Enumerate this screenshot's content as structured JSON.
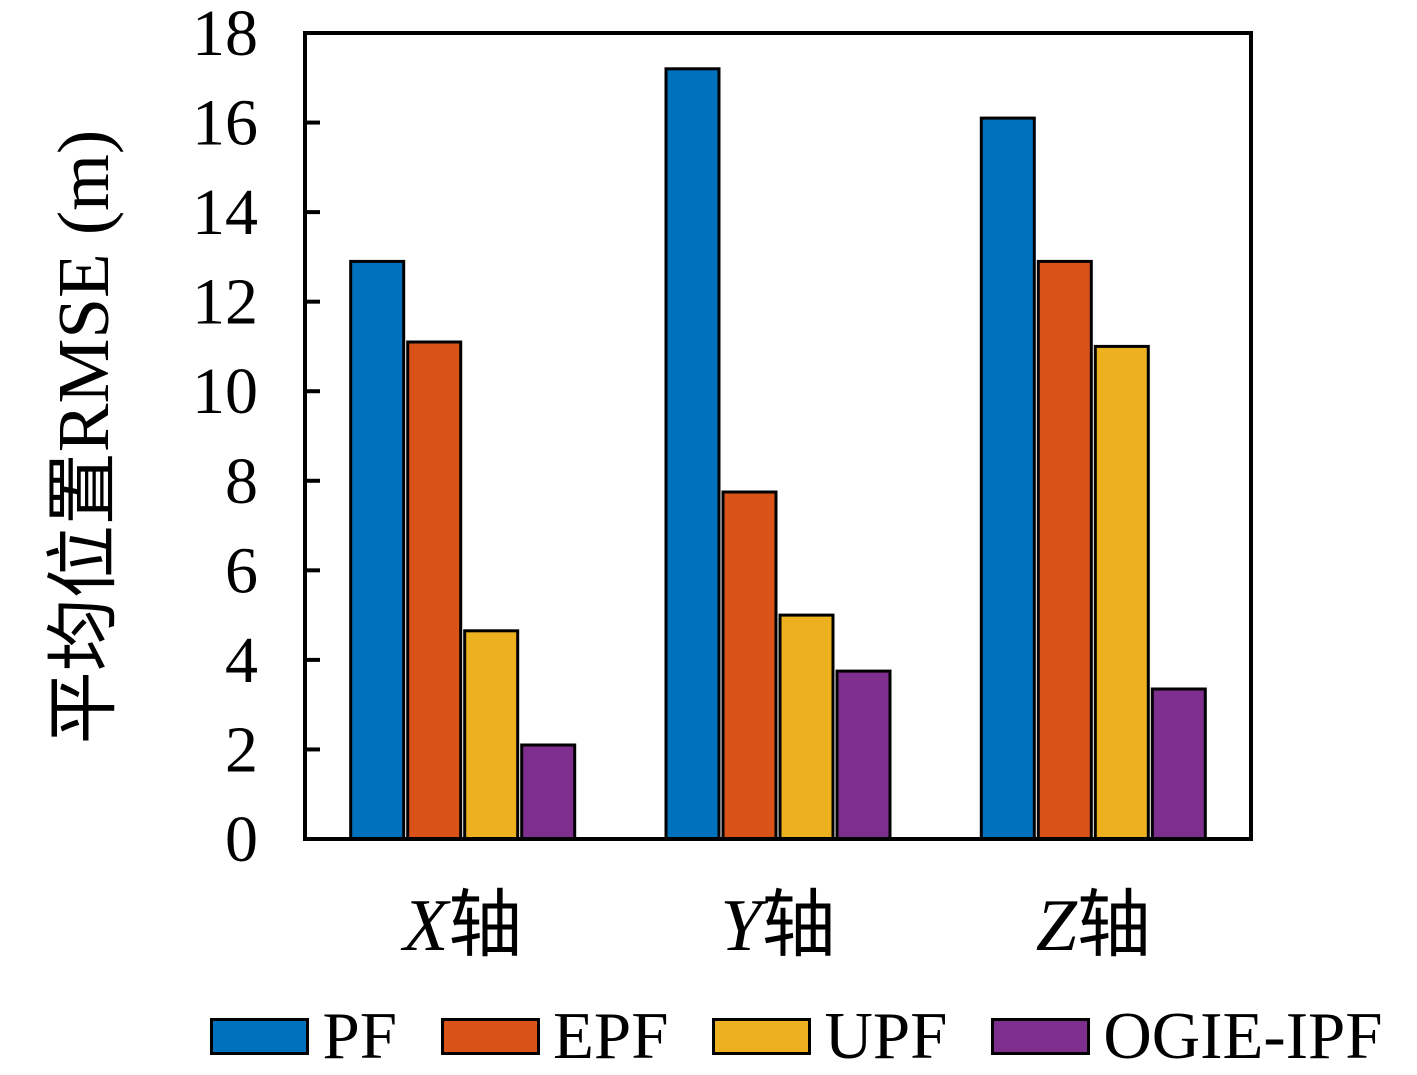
{
  "chart_data": {
    "type": "bar",
    "title": "",
    "xlabel": "",
    "ylabel": "平均位置RMSE (m)",
    "categories": [
      "X轴",
      "Y轴",
      "Z轴"
    ],
    "categories_styled": [
      {
        "letter": "X",
        "word": "轴"
      },
      {
        "letter": "Y",
        "word": "轴"
      },
      {
        "letter": "Z",
        "word": "轴"
      }
    ],
    "yticks": [
      0,
      2,
      4,
      6,
      8,
      10,
      12,
      14,
      16,
      18
    ],
    "ylim": [
      0,
      18
    ],
    "grid": false,
    "box": true,
    "tick_direction": "in",
    "legend_position": "bottom",
    "axis_color": "#000000",
    "background_color": "#ffffff",
    "series": [
      {
        "name": "PF",
        "color": "#0072BD",
        "values": [
          12.9,
          17.2,
          16.1
        ]
      },
      {
        "name": "EPF",
        "color": "#D95319",
        "values": [
          11.1,
          7.75,
          12.9
        ]
      },
      {
        "name": "UPF",
        "color": "#EDB120",
        "values": [
          4.65,
          5.0,
          11.0
        ]
      },
      {
        "name": "OGIE-IPF",
        "color": "#7E2F8E",
        "values": [
          2.1,
          3.75,
          3.35
        ]
      }
    ]
  }
}
